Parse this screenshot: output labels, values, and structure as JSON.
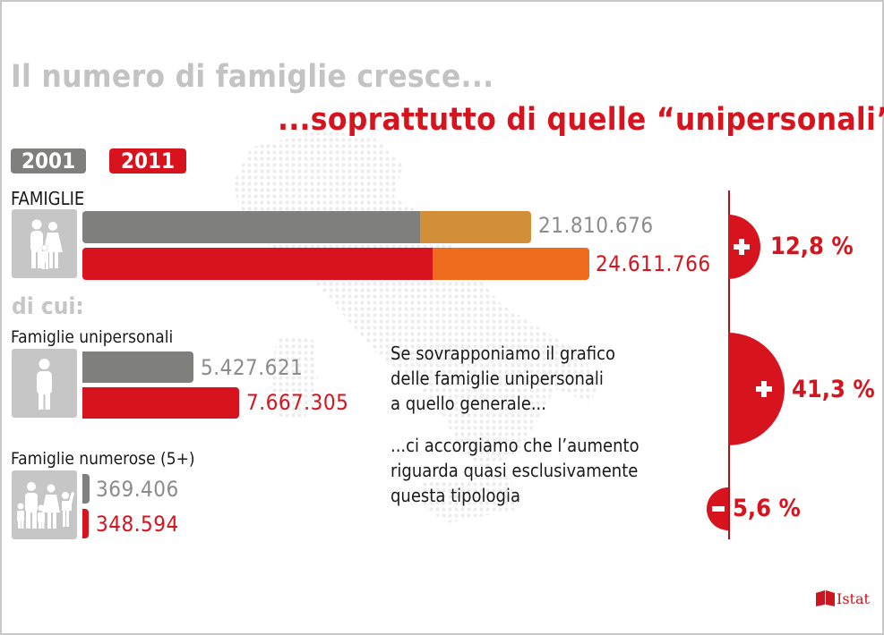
{
  "title_line1": "Il numero di famiglie cresce...",
  "title_line2": "...soprattutto di quelle “unipersonali”",
  "legend": [
    {
      "label": "2001",
      "color": "#7f7f7d"
    },
    {
      "label": "2011",
      "color": "#d7131e"
    }
  ],
  "sections": {
    "famiglie_label": "FAMIGLIE",
    "di_cui_label": "di cui:",
    "unipersonali_label": "Famiglie unipersonali",
    "numerose_label": "Famiglie numerose (5+)"
  },
  "note": {
    "line1": "Se sovrapponiamo il grafico",
    "line2": "delle famiglie unipersonali",
    "line3": "a quello generale...",
    "line4": "...ci accorgiamo che l’aumento",
    "line5": "riguarda quasi esclusivamente",
    "line6": "questa tipologia"
  },
  "changes": [
    {
      "sign": "+",
      "value": "12,8 %"
    },
    {
      "sign": "+",
      "value": "41,3 %"
    },
    {
      "sign": "-",
      "value": "5,6 %"
    }
  ],
  "logo": {
    "text": "Istat"
  },
  "colors": {
    "gray_2001": "#7f7f7d",
    "red_2011": "#d7131e",
    "overlay_2001": "#d38e3a",
    "overlay_2011": "#ef6c1e",
    "icon_bg": "#c6c6c6"
  },
  "chart_data": {
    "type": "bar",
    "orientation": "horizontal",
    "title": "Il numero di famiglie cresce...",
    "subtitle": "...soprattutto di quelle “unipersonali”",
    "series_years": [
      "2001",
      "2011"
    ],
    "categories": [
      "FAMIGLIE",
      "Famiglie unipersonali",
      "Famiglie numerose (5+)"
    ],
    "series": [
      {
        "name": "2001",
        "values": [
          21810676,
          5427621,
          369406
        ],
        "labels": [
          "21.810.676",
          "5.427.621",
          "369.406"
        ]
      },
      {
        "name": "2011",
        "values": [
          24611766,
          7667305,
          348594
        ],
        "labels": [
          "24.611.766",
          "7.667.305",
          "348.594"
        ]
      }
    ],
    "overlay": {
      "description": "Famiglie unipersonali overlaid on FAMIGLIE bars",
      "values": [
        5427621,
        7667305
      ]
    },
    "changes_pct": [
      12.8,
      41.3,
      -5.6
    ],
    "grid": false,
    "legend_position": "top-left"
  }
}
